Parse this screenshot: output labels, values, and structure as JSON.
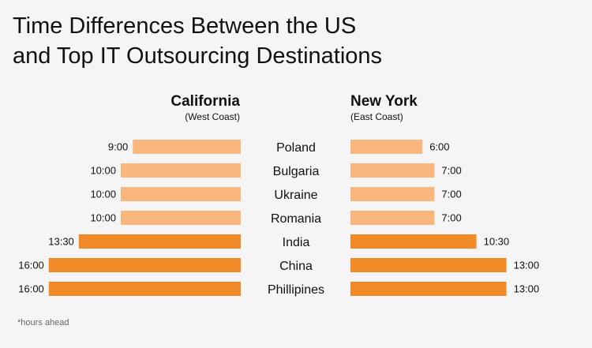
{
  "title": {
    "line1": "Time Differences Between the US",
    "line2": "and Top IT Outsourcing Destinations"
  },
  "footnote": "*hours ahead",
  "colors": {
    "light": "#f9b77e",
    "dark": "#f28a2a",
    "background": "#f5f5f5"
  },
  "chart_data": {
    "type": "bar",
    "categories": [
      "Poland",
      "Bulgaria",
      "Ukraine",
      "Romania",
      "India",
      "China",
      "Phillipines"
    ],
    "series": [
      {
        "name": "California",
        "subtitle": "(West Coast)",
        "values": [
          9,
          10,
          10,
          10,
          13.5,
          16,
          16
        ],
        "labels": [
          "9:00",
          "10:00",
          "10:00",
          "10:00",
          "13:30",
          "16:00",
          "16:00"
        ]
      },
      {
        "name": "New York",
        "subtitle": "(East Coast)",
        "values": [
          6,
          7,
          7,
          7,
          10.5,
          13,
          13
        ],
        "labels": [
          "6:00",
          "7:00",
          "7:00",
          "7:00",
          "10:30",
          "13:00",
          "13:00"
        ]
      }
    ],
    "highlight": [
      false,
      false,
      false,
      false,
      true,
      true,
      true
    ]
  }
}
